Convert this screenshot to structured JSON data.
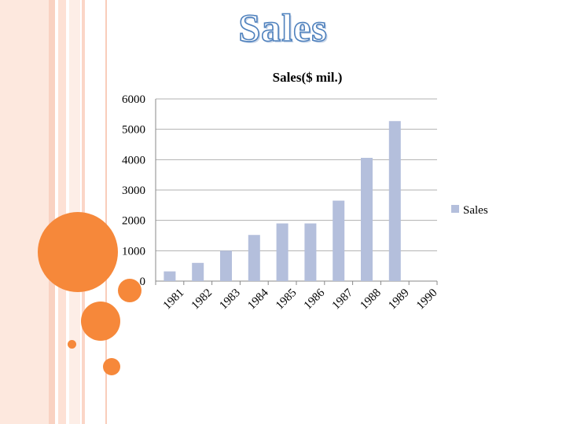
{
  "slide": {
    "title": "Sales",
    "colors": {
      "accent": "#f6883a",
      "title_outline": "#4f81bd",
      "bar": "#b4bfdc",
      "stripe": "#fbe0d4"
    }
  },
  "chart_data": {
    "type": "bar",
    "title": "Sales($ mil.)",
    "categories": [
      "1981",
      "1982",
      "1983",
      "1984",
      "1985",
      "1986",
      "1987",
      "1988",
      "1989",
      "1990"
    ],
    "series": [
      {
        "name": "Sales",
        "values": [
          320,
          600,
          1000,
          1520,
          1900,
          1900,
          2650,
          4060,
          5270,
          0
        ]
      }
    ],
    "xlabel": "",
    "ylabel": "",
    "ylim": [
      0,
      6000
    ],
    "yticks": [
      "0",
      "1000",
      "2000",
      "3000",
      "4000",
      "5000",
      "6000"
    ],
    "grid": true,
    "legend": {
      "position": "right",
      "entries": [
        "Sales"
      ]
    }
  }
}
